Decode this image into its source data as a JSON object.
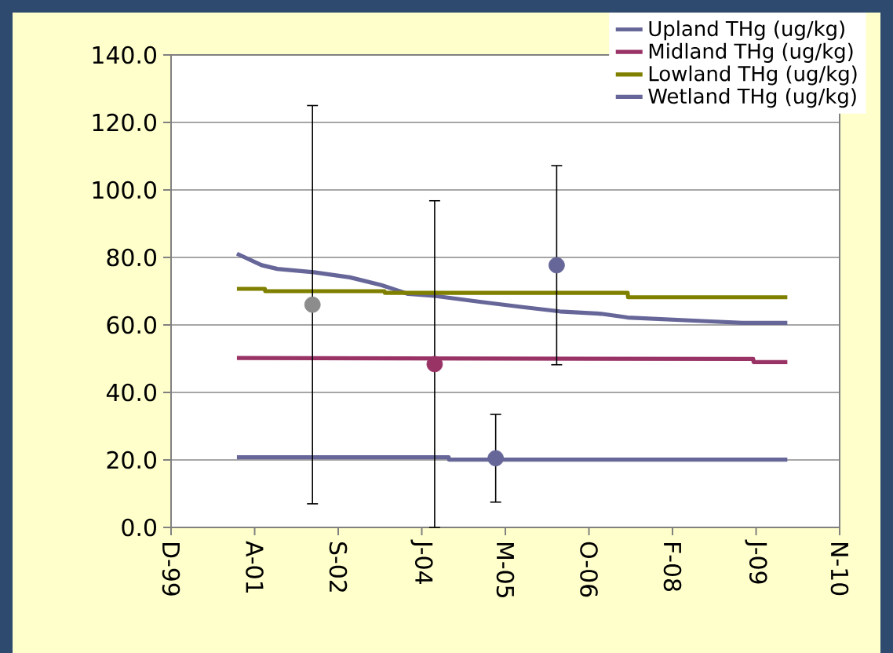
{
  "chart_data": {
    "type": "line",
    "xlim": [
      "1999-12-07",
      "2010-11-19"
    ],
    "xticks": [
      {
        "value": "1999-12-07",
        "label": "D-99"
      },
      {
        "value": "2001-04-20",
        "label": "A-01"
      },
      {
        "value": "2002-09-02",
        "label": "S-02"
      },
      {
        "value": "2004-01-15",
        "label": "J-04"
      },
      {
        "value": "2005-05-29",
        "label": "M-05"
      },
      {
        "value": "2006-10-11",
        "label": "O-06"
      },
      {
        "value": "2008-02-23",
        "label": "F-08"
      },
      {
        "value": "2009-07-07",
        "label": "J-09"
      },
      {
        "value": "2010-11-19",
        "label": "N-10"
      }
    ],
    "ylim": [
      0,
      140
    ],
    "yticks": [
      {
        "value": 0,
        "label": "0.0"
      },
      {
        "value": 20,
        "label": "20.0"
      },
      {
        "value": 40,
        "label": "40.0"
      },
      {
        "value": 60,
        "label": "60.0"
      },
      {
        "value": 80,
        "label": "80.0"
      },
      {
        "value": 100,
        "label": "100.0"
      },
      {
        "value": 120,
        "label": "120.0"
      },
      {
        "value": 140,
        "label": "140.0"
      }
    ],
    "grid": "y",
    "legend": "top right",
    "line_style": "solid",
    "series": [
      {
        "name": "Upland THg (ug/kg)",
        "color": "#666699",
        "x": [
          "2001-01-04",
          "2001-06-01",
          "2001-09-03",
          "2002-04-09",
          "2002-11-11",
          "2003-05-18",
          "2003-10-25",
          "2004-03-30",
          "2005-01-05",
          "2005-09-09",
          "2006-04-20",
          "2006-12-23",
          "2007-05-31",
          "2008-09-12",
          "2009-04-16",
          "2010-01-10"
        ],
        "values": [
          81.1,
          77.7,
          76.6,
          75.6,
          74.1,
          71.8,
          69.2,
          68.6,
          66.8,
          65.3,
          64.0,
          63.3,
          62.2,
          61.1,
          60.6,
          60.6
        ]
      },
      {
        "name": "Midland THg (ug/kg)",
        "color": "#993366",
        "x": [
          "2001-01-04",
          "2009-06-20",
          "2009-06-22",
          "2010-01-10"
        ],
        "values": [
          50.2,
          49.9,
          49.0,
          49.0
        ]
      },
      {
        "name": "Lowland THg (ug/kg)",
        "color": "#808000",
        "x": [
          "2001-01-04",
          "2001-06-20",
          "2001-06-22",
          "2003-06-06",
          "2003-06-08",
          "2007-05-31",
          "2007-06-02",
          "2010-01-10"
        ],
        "values": [
          70.7,
          70.7,
          70.0,
          70.0,
          69.5,
          69.5,
          68.2,
          68.2
        ]
      },
      {
        "name": "Wetland THg (ug/kg)",
        "color": "#666699",
        "x": [
          "2001-01-04",
          "2004-06-24",
          "2004-06-26",
          "2010-01-10"
        ],
        "values": [
          20.8,
          20.8,
          20.1,
          20.1
        ]
      },
      {
        "type": "scatter",
        "marker": "circle",
        "x": [
          "2002-04-01",
          "2004-04-01",
          "2005-04-01",
          "2006-04-01"
        ],
        "values": [
          66,
          48.4,
          20.5,
          77.7
        ],
        "errors": [
          59,
          48.4,
          13,
          29.5
        ],
        "colors": [
          "#8c8c8c",
          "#993366",
          "#666699",
          "#666699"
        ]
      }
    ]
  }
}
